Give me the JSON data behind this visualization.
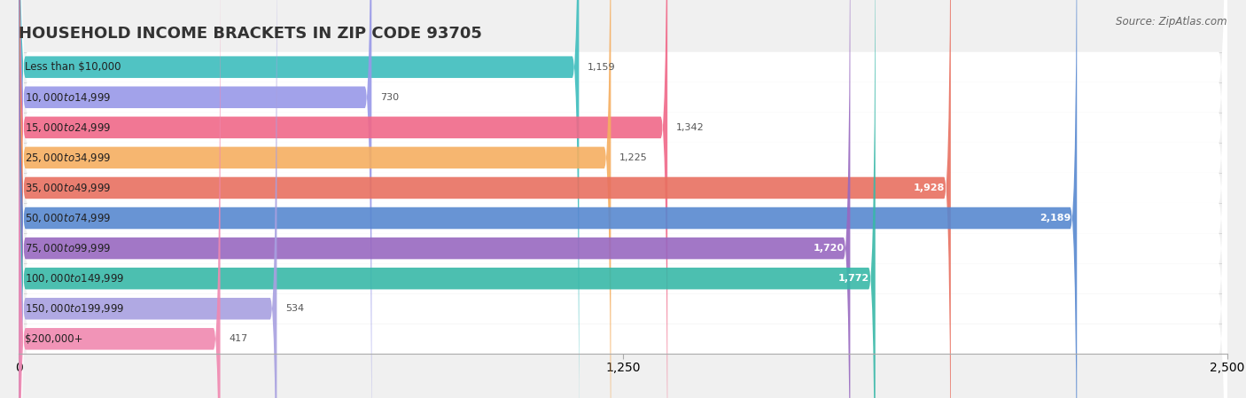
{
  "title": "HOUSEHOLD INCOME BRACKETS IN ZIP CODE 93705",
  "source": "Source: ZipAtlas.com",
  "categories": [
    "Less than $10,000",
    "$10,000 to $14,999",
    "$15,000 to $24,999",
    "$25,000 to $34,999",
    "$35,000 to $49,999",
    "$50,000 to $74,999",
    "$75,000 to $99,999",
    "$100,000 to $149,999",
    "$150,000 to $199,999",
    "$200,000+"
  ],
  "values": [
    1159,
    730,
    1342,
    1225,
    1928,
    2189,
    1720,
    1772,
    534,
    417
  ],
  "bar_colors": [
    "#3DBDBD",
    "#9898E8",
    "#F06888",
    "#F5AE60",
    "#E87060",
    "#5888D0",
    "#9868C0",
    "#38B8A8",
    "#A8A0E0",
    "#F088B0"
  ],
  "xlim": [
    0,
    2500
  ],
  "xticks": [
    0,
    1250,
    2500
  ],
  "xtick_labels": [
    "0",
    "1,250",
    "2,500"
  ],
  "bg_color": "#f0f0f0",
  "bar_bg_color": "#ffffff",
  "title_fontsize": 13,
  "label_fontsize": 8.5,
  "value_fontsize": 8,
  "source_fontsize": 8.5,
  "value_threshold": 1500
}
